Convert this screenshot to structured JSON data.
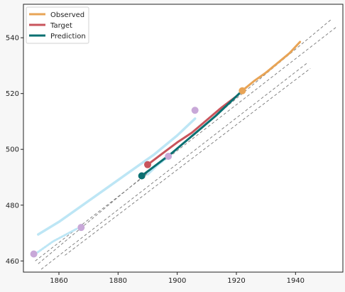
{
  "chart_data": {
    "type": "line",
    "xlim": [
      1848,
      1956
    ],
    "ylim": [
      456,
      552
    ],
    "x_ticks": [
      1860,
      1880,
      1900,
      1920,
      1940
    ],
    "y_ticks": [
      460,
      480,
      500,
      520,
      540
    ],
    "grid": false,
    "legend_position": "top-left",
    "legend": [
      {
        "label": "Observed",
        "color": "#e8a456"
      },
      {
        "label": "Target",
        "color": "#c8545c"
      },
      {
        "label": "Prediction",
        "color": "#0a7072"
      }
    ],
    "series": [
      {
        "name": "Observed",
        "color": "#e8a456",
        "width": 3,
        "points": [
          [
            1922,
            521
          ],
          [
            1926,
            524.5
          ],
          [
            1930,
            527.5
          ],
          [
            1934,
            531
          ],
          [
            1938,
            534.5
          ],
          [
            1941.5,
            538.5
          ]
        ],
        "marker": [
          1922,
          521
        ]
      },
      {
        "name": "Target",
        "color": "#c8545c",
        "width": 3,
        "points": [
          [
            1890,
            494.5
          ],
          [
            1895,
            498.5
          ],
          [
            1900,
            502.5
          ],
          [
            1905,
            506
          ],
          [
            1910,
            510.5
          ],
          [
            1915,
            515
          ],
          [
            1920,
            519
          ],
          [
            1922,
            521
          ]
        ],
        "marker": [
          1890,
          494.5
        ]
      },
      {
        "name": "Prediction",
        "color": "#0a7072",
        "width": 3,
        "points": [
          [
            1888,
            490.5
          ],
          [
            1893,
            494.5
          ],
          [
            1898,
            498.5
          ],
          [
            1903,
            503
          ],
          [
            1908,
            507.5
          ],
          [
            1913,
            512
          ],
          [
            1918,
            517
          ],
          [
            1922,
            521
          ]
        ],
        "marker": [
          1888,
          490.5
        ]
      }
    ],
    "trajectories": [
      {
        "color": "#bde6f5",
        "style": "solid",
        "points": [
          [
            1853,
            469.5
          ],
          [
            1860,
            474
          ],
          [
            1868,
            480
          ],
          [
            1876,
            486
          ],
          [
            1884,
            492
          ],
          [
            1892,
            498
          ],
          [
            1900,
            505
          ],
          [
            1906,
            511
          ]
        ]
      },
      {
        "color": "#bde6f5",
        "style": "dotted",
        "points": [
          [
            1852,
            462.5
          ],
          [
            1858,
            467
          ],
          [
            1866,
            471.5
          ]
        ]
      },
      {
        "color": "#bde6f5",
        "style": "dotted",
        "points": [
          [
            1890,
            491
          ],
          [
            1893,
            494
          ],
          [
            1897,
            497.5
          ]
        ]
      }
    ],
    "guide_lines": [
      [
        [
          1853,
          459
        ],
        [
          1952,
          546.5
        ]
      ],
      [
        [
          1852,
          460
        ],
        [
          1954,
          544
        ]
      ],
      [
        [
          1854,
          457
        ],
        [
          1944,
          531
        ]
      ],
      [
        [
          1862,
          462
        ],
        [
          1945,
          529
        ]
      ]
    ],
    "purple_markers": [
      [
        1851.5,
        462.5
      ],
      [
        1867.5,
        472
      ],
      [
        1897,
        497.5
      ],
      [
        1906,
        514
      ]
    ],
    "purple_color": "#c8a8d8"
  }
}
